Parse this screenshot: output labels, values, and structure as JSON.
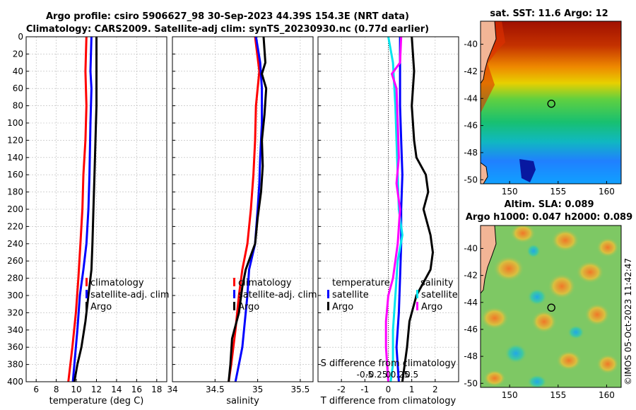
{
  "header": {
    "line1": "Argo profile: csiro 5906627_98 30-Sep-2023 44.39S 154.3E (NRT data)",
    "line2": "Climatology: CARS2009. Satellite-adj clim: synTS_20230930.nc (0.77d earlier)"
  },
  "watermark": "©IMOS 05-Oct-2023 11:42:47",
  "colors": {
    "climatology": "#ff0000",
    "satellite": "#0000ff",
    "argo": "#000000",
    "sal_sat": "#00e5ee",
    "sal_argo": "#ff00ff",
    "grid": "#b8b8b8"
  },
  "chart_data": [
    {
      "type": "line",
      "id": "temperature",
      "xlabel": "temperature (deg C)",
      "ylabel": "depth",
      "xlim": [
        5,
        19
      ],
      "ylim": [
        0,
        400
      ],
      "xticks": [
        6,
        8,
        10,
        12,
        14,
        16,
        18
      ],
      "xtick_labels": [
        "6",
        "8",
        "10",
        "12",
        "14",
        "16",
        "18"
      ],
      "yticks": [
        0,
        20,
        40,
        60,
        80,
        100,
        120,
        140,
        160,
        180,
        200,
        220,
        240,
        260,
        280,
        300,
        320,
        340,
        360,
        380,
        400
      ],
      "ytick_labels": [
        "0",
        "20",
        "40",
        "60",
        "80",
        "100",
        "120",
        "140",
        "160",
        "180",
        "200",
        "220",
        "240",
        "260",
        "280",
        "300",
        "320",
        "340",
        "360",
        "380",
        "400"
      ],
      "legend": [
        "climatology",
        "satellite-adj. clim",
        "Argo"
      ],
      "series": [
        {
          "name": "climatology",
          "color": "#ff0000",
          "points": [
            [
              11.0,
              0
            ],
            [
              10.9,
              40
            ],
            [
              11.0,
              80
            ],
            [
              10.9,
              120
            ],
            [
              10.7,
              160
            ],
            [
              10.6,
              200
            ],
            [
              10.4,
              240
            ],
            [
              10.2,
              280
            ],
            [
              9.95,
              320
            ],
            [
              9.6,
              360
            ],
            [
              9.2,
              400
            ]
          ]
        },
        {
          "name": "satellite-adj. clim",
          "color": "#0000ff",
          "points": [
            [
              11.5,
              0
            ],
            [
              11.4,
              40
            ],
            [
              11.5,
              60
            ],
            [
              11.4,
              100
            ],
            [
              11.3,
              160
            ],
            [
              11.2,
              200
            ],
            [
              11.0,
              240
            ],
            [
              10.7,
              270
            ],
            [
              10.35,
              300
            ],
            [
              10.1,
              340
            ],
            [
              9.8,
              380
            ],
            [
              9.65,
              400
            ]
          ]
        },
        {
          "name": "Argo",
          "color": "#000000",
          "points": [
            [
              12.0,
              0
            ],
            [
              12.0,
              40
            ],
            [
              12.0,
              80
            ],
            [
              11.9,
              120
            ],
            [
              11.8,
              160
            ],
            [
              11.7,
              200
            ],
            [
              11.6,
              240
            ],
            [
              11.5,
              270
            ],
            [
              11.2,
              300
            ],
            [
              10.9,
              330
            ],
            [
              10.5,
              360
            ],
            [
              10.1,
              380
            ],
            [
              9.8,
              400
            ]
          ]
        }
      ]
    },
    {
      "type": "line",
      "id": "salinity",
      "xlabel": "salinity",
      "xlim": [
        34.0,
        35.65
      ],
      "ylim": [
        0,
        400
      ],
      "xticks": [
        34.0,
        34.5,
        35.0,
        35.5
      ],
      "xtick_labels": [
        "34",
        "34.5",
        "35",
        "35.5"
      ],
      "legend": [
        "climatology",
        "satellite-adj. clim",
        "Argo"
      ],
      "series": [
        {
          "name": "climatology",
          "color": "#ff0000",
          "points": [
            [
              34.97,
              0
            ],
            [
              35.02,
              40
            ],
            [
              34.98,
              80
            ],
            [
              34.97,
              120
            ],
            [
              34.95,
              160
            ],
            [
              34.92,
              200
            ],
            [
              34.88,
              240
            ],
            [
              34.82,
              270
            ],
            [
              34.78,
              300
            ],
            [
              34.74,
              340
            ],
            [
              34.69,
              380
            ],
            [
              34.66,
              400
            ]
          ]
        },
        {
          "name": "satellite-adj. clim",
          "color": "#0000ff",
          "points": [
            [
              34.98,
              0
            ],
            [
              35.03,
              30
            ],
            [
              35.05,
              60
            ],
            [
              35.05,
              100
            ],
            [
              35.03,
              140
            ],
            [
              35.02,
              170
            ],
            [
              35.0,
              200
            ],
            [
              34.97,
              240
            ],
            [
              34.9,
              270
            ],
            [
              34.88,
              300
            ],
            [
              34.85,
              330
            ],
            [
              34.82,
              360
            ],
            [
              34.78,
              380
            ],
            [
              34.74,
              400
            ]
          ]
        },
        {
          "name": "Argo",
          "color": "#000000",
          "points": [
            [
              35.07,
              0
            ],
            [
              35.09,
              30
            ],
            [
              35.05,
              43
            ],
            [
              35.1,
              60
            ],
            [
              35.08,
              90
            ],
            [
              35.05,
              120
            ],
            [
              35.06,
              150
            ],
            [
              35.04,
              180
            ],
            [
              35.0,
              210
            ],
            [
              34.97,
              240
            ],
            [
              34.86,
              270
            ],
            [
              34.82,
              290
            ],
            [
              34.78,
              320
            ],
            [
              34.7,
              350
            ],
            [
              34.68,
              380
            ],
            [
              34.66,
              400
            ]
          ]
        }
      ]
    },
    {
      "type": "line",
      "id": "difference",
      "xlabel": "T difference from climatology",
      "xlabel_top": "S difference from climatology",
      "xlim": [
        -3,
        3
      ],
      "ylim": [
        0,
        400
      ],
      "xticks": [
        -2,
        -1,
        0,
        1,
        2
      ],
      "xtick_labels": [
        "-2",
        "-1",
        "0",
        "1",
        "2"
      ],
      "sticks": [
        -0.5,
        -0.25,
        0,
        0.25,
        0.5
      ],
      "stick_labels": [
        "-0.5",
        "-0.25",
        "0",
        "0.25",
        "0.5"
      ],
      "legend_left_title": "temperature",
      "legend_right_title": "salinity",
      "legend_left": [
        "satellite",
        "Argo"
      ],
      "legend_right": [
        "satellite",
        "Argo"
      ],
      "series": [
        {
          "name": "T satellite",
          "color": "#0000ff",
          "points": [
            [
              0.5,
              0
            ],
            [
              0.5,
              40
            ],
            [
              0.5,
              80
            ],
            [
              0.55,
              120
            ],
            [
              0.6,
              160
            ],
            [
              0.55,
              200
            ],
            [
              0.55,
              240
            ],
            [
              0.5,
              280
            ],
            [
              0.45,
              320
            ],
            [
              0.35,
              360
            ],
            [
              0.45,
              400
            ]
          ]
        },
        {
          "name": "T Argo",
          "color": "#000000",
          "points": [
            [
              1.0,
              0
            ],
            [
              1.1,
              40
            ],
            [
              1.0,
              80
            ],
            [
              1.1,
              120
            ],
            [
              1.2,
              140
            ],
            [
              1.6,
              160
            ],
            [
              1.7,
              180
            ],
            [
              1.5,
              200
            ],
            [
              1.8,
              230
            ],
            [
              1.9,
              250
            ],
            [
              1.8,
              270
            ],
            [
              1.2,
              300
            ],
            [
              0.9,
              330
            ],
            [
              0.8,
              360
            ],
            [
              0.7,
              380
            ],
            [
              0.6,
              400
            ]
          ]
        },
        {
          "name": "S satellite",
          "color": "#00e5ee",
          "points": [
            [
              0.0,
              0
            ],
            [
              0.2,
              30
            ],
            [
              0.3,
              80
            ],
            [
              0.35,
              120
            ],
            [
              0.4,
              160
            ],
            [
              0.45,
              200
            ],
            [
              0.6,
              230
            ],
            [
              0.4,
              260
            ],
            [
              0.3,
              300
            ],
            [
              0.2,
              340
            ],
            [
              0.2,
              380
            ],
            [
              0.1,
              400
            ]
          ]
        },
        {
          "name": "S Argo",
          "color": "#ff00ff",
          "points": [
            [
              0.55,
              0
            ],
            [
              0.5,
              30
            ],
            [
              0.15,
              43
            ],
            [
              0.35,
              60
            ],
            [
              0.4,
              100
            ],
            [
              0.45,
              140
            ],
            [
              0.35,
              170
            ],
            [
              0.5,
              200
            ],
            [
              0.4,
              240
            ],
            [
              0.2,
              280
            ],
            [
              0.0,
              300
            ],
            [
              -0.1,
              330
            ],
            [
              -0.1,
              360
            ],
            [
              -0.05,
              380
            ],
            [
              0.0,
              400
            ]
          ]
        }
      ]
    },
    {
      "type": "heatmap",
      "id": "sst_map",
      "title": "sat. SST: 11.6 Argo: 12",
      "xlim": [
        147,
        161.5
      ],
      "ylim": [
        -50.3,
        -38.3
      ],
      "xticks": [
        150,
        155,
        160
      ],
      "xtick_labels": [
        "150",
        "155",
        "160"
      ],
      "yticks": [
        -40,
        -42,
        -44,
        -46,
        -48,
        -50
      ],
      "ytick_labels": [
        "-40",
        "-42",
        "-44",
        "-46",
        "-48",
        "-50"
      ],
      "argo_marker": {
        "lon": 154.3,
        "lat": -44.39
      }
    },
    {
      "type": "heatmap",
      "id": "sla_map",
      "title": "Altim. SLA: 0.089",
      "subtitle": "Argo h1000: 0.047 h2000: 0.089",
      "xlim": [
        147,
        161.5
      ],
      "ylim": [
        -50.3,
        -38.3
      ],
      "xticks": [
        150,
        155,
        160
      ],
      "xtick_labels": [
        "150",
        "155",
        "160"
      ],
      "yticks": [
        -40,
        -42,
        -44,
        -46,
        -48,
        -50
      ],
      "ytick_labels": [
        "-40",
        "-42",
        "-44",
        "-46",
        "-48",
        "-50"
      ],
      "argo_marker": {
        "lon": 154.3,
        "lat": -44.39
      }
    }
  ]
}
